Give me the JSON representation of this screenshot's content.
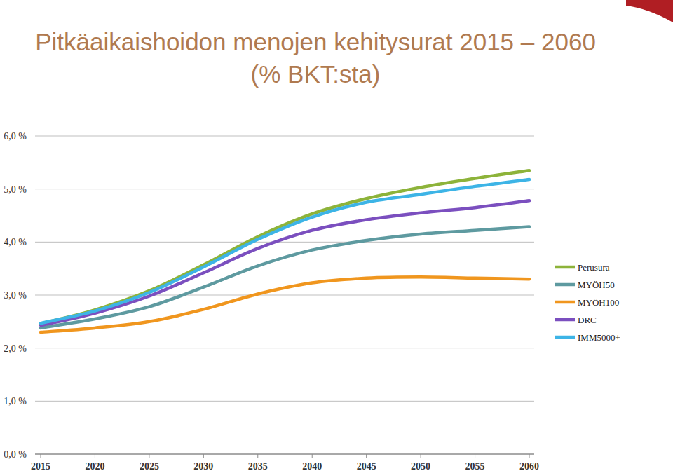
{
  "chart_data": {
    "type": "line",
    "title": "Pitkäaikaishoidon menojen kehitysurat 2015 – 2060",
    "subtitle": "(% BKT:sta)",
    "x": [
      2015,
      2020,
      2025,
      2030,
      2035,
      2040,
      2045,
      2050,
      2055,
      2060
    ],
    "series": [
      {
        "name": "Perusura",
        "color": "#8db33a",
        "values": [
          2.46,
          2.72,
          3.08,
          3.57,
          4.1,
          4.53,
          4.82,
          5.03,
          5.2,
          5.35
        ]
      },
      {
        "name": "MYÖH50",
        "color": "#5e9aa0",
        "values": [
          2.38,
          2.55,
          2.78,
          3.15,
          3.55,
          3.85,
          4.03,
          4.15,
          4.22,
          4.29
        ]
      },
      {
        "name": "MYÖH100",
        "color": "#f0961e",
        "values": [
          2.3,
          2.38,
          2.5,
          2.73,
          3.02,
          3.23,
          3.32,
          3.34,
          3.32,
          3.3
        ]
      },
      {
        "name": "DRC",
        "color": "#7b4fbf",
        "values": [
          2.43,
          2.66,
          2.98,
          3.42,
          3.88,
          4.22,
          4.42,
          4.55,
          4.65,
          4.78
        ]
      },
      {
        "name": "IMM5000+",
        "color": "#3db4e6",
        "values": [
          2.47,
          2.7,
          3.05,
          3.53,
          4.05,
          4.47,
          4.75,
          4.9,
          5.05,
          5.18
        ]
      }
    ],
    "xlim": [
      2015,
      2060
    ],
    "xticks": [
      2015,
      2020,
      2025,
      2030,
      2035,
      2040,
      2045,
      2050,
      2055,
      2060
    ],
    "ylim": [
      0,
      6
    ],
    "yticks": [
      {
        "value": 0,
        "label": "0,0 %"
      },
      {
        "value": 1,
        "label": "1,0 %"
      },
      {
        "value": 2,
        "label": "2,0 %"
      },
      {
        "value": 3,
        "label": "3,0 %"
      },
      {
        "value": 4,
        "label": "4,0 %"
      },
      {
        "value": 5,
        "label": "5,0 %"
      },
      {
        "value": 6,
        "label": "6,0 %"
      }
    ],
    "grid": true,
    "legend": "right"
  }
}
